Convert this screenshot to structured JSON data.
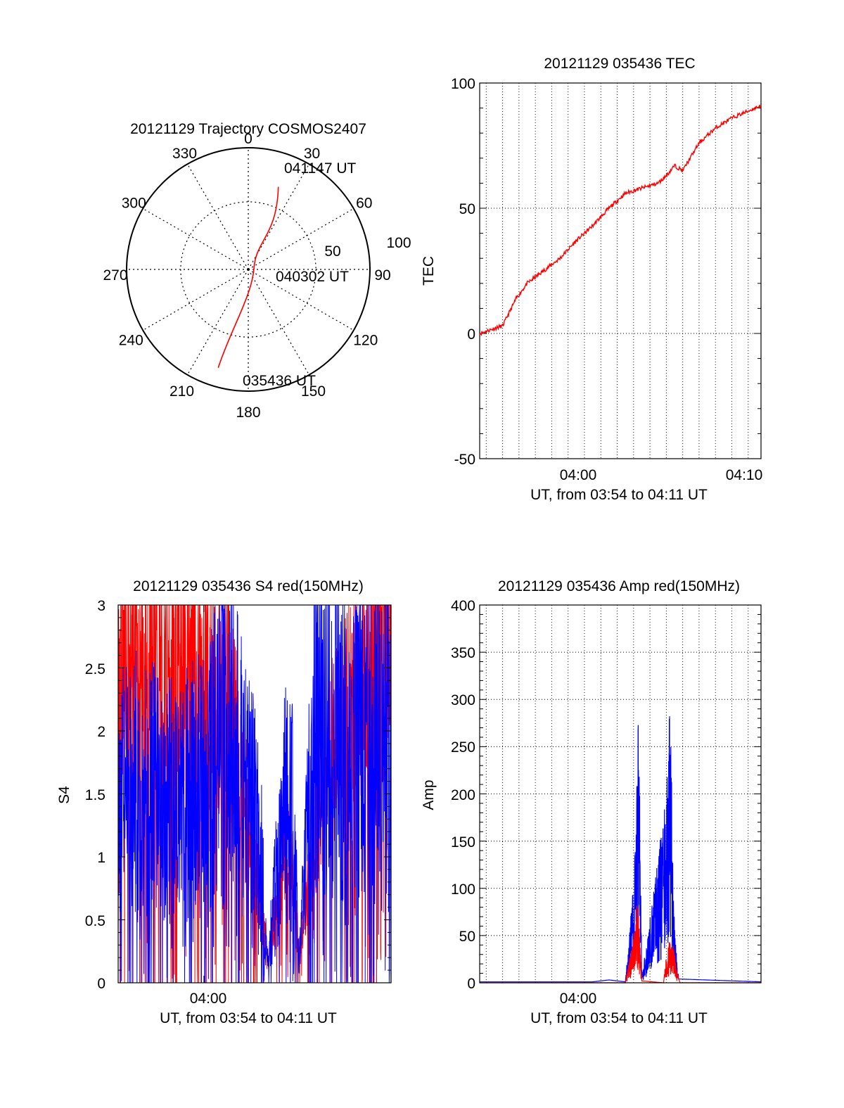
{
  "chart_data": [
    {
      "type": "polar-trajectory",
      "title": "20121129 Trajectory COSMOS2407",
      "angle_labels": [
        "0",
        "30",
        "60",
        "90",
        "120",
        "150",
        "180",
        "210",
        "240",
        "270",
        "300",
        "330"
      ],
      "radial_labels": [
        "50",
        "100"
      ],
      "track_start": {
        "azimuth": 197,
        "elevation": 14
      },
      "track_mid": {
        "azimuth": 55,
        "elevation": 88
      },
      "track_end": {
        "azimuth": 20,
        "elevation": 25
      },
      "annotations": [
        "041147 UT",
        "040302 UT",
        "035436 UT"
      ],
      "colors": {
        "track": "#ff0000"
      }
    },
    {
      "type": "line",
      "title": "20121129 035436 TEC",
      "xlabel": "UT, from 03:54 to 04:11 UT",
      "ylabel": "TEC",
      "x_range": [
        "03:54:36",
        "04:11:47"
      ],
      "ylim": [
        -50,
        100
      ],
      "yticks": [
        "100",
        "50",
        "0",
        "-50"
      ],
      "xticks": [
        "04:00",
        "04:10"
      ],
      "grid": true,
      "series": [
        {
          "color": "#ff0000",
          "x": [
            "03:54:36",
            "03:55:30",
            "03:56:00",
            "03:56:50",
            "03:57:30",
            "03:58:30",
            "03:59:30",
            "04:00:30",
            "04:01:30",
            "04:02:30",
            "04:03:30",
            "04:04:30",
            "04:05:30",
            "04:06:00",
            "04:06:30",
            "04:07:00",
            "04:08:00",
            "04:09:00",
            "04:10:00",
            "04:11:47"
          ],
          "values": [
            0,
            2,
            3,
            14,
            20,
            25,
            30,
            37,
            43,
            50,
            56,
            58,
            60,
            63,
            67,
            65,
            76,
            82,
            86,
            91
          ]
        }
      ]
    },
    {
      "type": "line",
      "title": "20121129 035436 S4 red(150MHz)",
      "xlabel": "UT, from 03:54 to 04:11 UT",
      "ylabel": "S4",
      "x_range": [
        "03:54:36",
        "04:11:47"
      ],
      "ylim": [
        0,
        3
      ],
      "yticks": [
        "3",
        "2.5",
        "2",
        "1.5",
        "1",
        "0.5",
        "0"
      ],
      "xticks": [
        "04:00"
      ],
      "series": [
        {
          "color": "#ff0000",
          "x": [
            "03:54:36",
            "03:57:00",
            "03:59:00",
            "04:01:30",
            "04:02:30",
            "04:03:30",
            "04:04:00",
            "04:05:00",
            "04:05:30",
            "04:06:00",
            "04:07:00",
            "04:08:00",
            "04:09:00",
            "04:10:00",
            "04:11:47"
          ],
          "values": [
            2.6,
            2.6,
            2.55,
            2.2,
            1.5,
            0.8,
            0.15,
            0.9,
            1.0,
            0.2,
            1.2,
            1.8,
            2.2,
            2.6,
            2.7
          ]
        },
        {
          "color": "#0000ff",
          "x": [
            "03:54:36",
            "03:57:00",
            "03:59:00",
            "04:01:30",
            "04:02:30",
            "04:03:30",
            "04:04:00",
            "04:05:00",
            "04:05:30",
            "04:06:00",
            "04:07:00",
            "04:08:00",
            "04:09:00",
            "04:10:00",
            "04:11:47"
          ],
          "values": [
            1.6,
            1.5,
            1.5,
            2.0,
            1.6,
            1.2,
            0.15,
            1.3,
            1.6,
            0.2,
            2.0,
            2.0,
            2.0,
            2.0,
            1.8
          ]
        }
      ]
    },
    {
      "type": "line",
      "title": "20121129 035436 Amp red(150MHz)",
      "xlabel": "UT, from 03:54 to 04:11 UT",
      "ylabel": "Amp",
      "x_range": [
        "03:54:36",
        "04:11:47"
      ],
      "ylim": [
        0,
        400
      ],
      "yticks": [
        "400",
        "350",
        "300",
        "250",
        "200",
        "150",
        "100",
        "50",
        "0"
      ],
      "xticks": [
        "04:00"
      ],
      "grid": true,
      "series": [
        {
          "color": "#0000ff",
          "x": [
            "03:54:36",
            "04:01:30",
            "04:02:30",
            "04:03:30",
            "04:04:00",
            "04:04:10",
            "04:04:20",
            "04:04:30",
            "04:06:00",
            "04:06:15",
            "04:06:30",
            "04:06:45",
            "04:11:47"
          ],
          "values": [
            1,
            1,
            3,
            1,
            110,
            200,
            305,
            5,
            200,
            313,
            60,
            4,
            1
          ]
        },
        {
          "color": "#ff0000",
          "x": [
            "03:54:36",
            "04:03:30",
            "04:04:00",
            "04:04:15",
            "04:04:30",
            "04:05:50",
            "04:06:00",
            "04:06:20",
            "04:06:40",
            "04:06:50",
            "04:11:47"
          ],
          "values": [
            0,
            0,
            50,
            90,
            2,
            0,
            30,
            55,
            10,
            0,
            0
          ]
        }
      ]
    }
  ]
}
